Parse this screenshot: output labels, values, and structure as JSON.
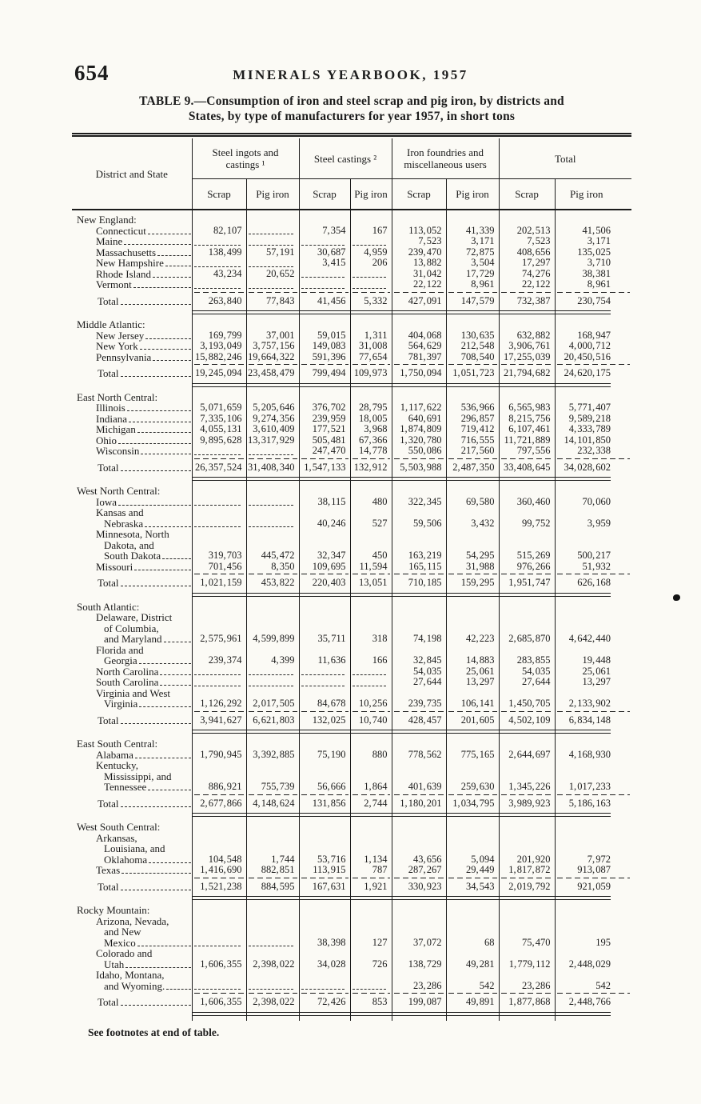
{
  "page": {
    "page_number": "654",
    "running_header": "MINERALS YEARBOOK, 1957",
    "title_line1": "TABLE 9.—Consumption of iron and steel scrap and pig iron, by districts and",
    "title_line2": "States, by type of manufacturers for year 1957, in short tons",
    "footnote": "See footnotes at end of table."
  },
  "table": {
    "stub_header": "District and State",
    "groups": [
      {
        "label": "Steel ingots and castings ¹"
      },
      {
        "label": "Steel castings ²"
      },
      {
        "label": "Iron foundries and miscellaneous users"
      },
      {
        "label": "Total"
      }
    ],
    "sub_headers": [
      "Scrap",
      "Pig iron",
      "Scrap",
      "Pig iron",
      "Scrap",
      "Pig iron",
      "Scrap",
      "Pig iron"
    ],
    "total_label": "Total",
    "sections": [
      {
        "name": "New England:",
        "rows": [
          {
            "lines": [
              [
                "Connecticut",
                1
              ]
            ],
            "values": [
              "82, 107",
              "",
              "7, 354",
              "167",
              "113, 052",
              "41, 339",
              "202, 513",
              "41, 506"
            ]
          },
          {
            "lines": [
              [
                "Maine",
                1
              ]
            ],
            "values": [
              "",
              "",
              "",
              "",
              "7, 523",
              "3, 171",
              "7, 523",
              "3, 171"
            ]
          },
          {
            "lines": [
              [
                "Massachusetts",
                1
              ]
            ],
            "values": [
              "138, 499",
              "57, 191",
              "30, 687",
              "4, 959",
              "239, 470",
              "72, 875",
              "408, 656",
              "135, 025"
            ]
          },
          {
            "lines": [
              [
                "New Hampshire",
                1
              ]
            ],
            "values": [
              "",
              "",
              "3, 415",
              "206",
              "13, 882",
              "3, 504",
              "17, 297",
              "3, 710"
            ]
          },
          {
            "lines": [
              [
                "Rhode Island",
                1
              ]
            ],
            "values": [
              "43, 234",
              "20, 652",
              "",
              "",
              "31, 042",
              "17, 729",
              "74, 276",
              "38, 381"
            ]
          },
          {
            "lines": [
              [
                "Vermont",
                1
              ]
            ],
            "values": [
              "",
              "",
              "",
              "",
              "22, 122",
              "8, 961",
              "22, 122",
              "8, 961"
            ]
          }
        ],
        "total": [
          "263, 840",
          "77, 843",
          "41, 456",
          "5, 332",
          "427, 091",
          "147, 579",
          "732, 387",
          "230, 754"
        ]
      },
      {
        "name": "Middle Atlantic:",
        "rows": [
          {
            "lines": [
              [
                "New Jersey",
                1
              ]
            ],
            "values": [
              "169, 799",
              "37, 001",
              "59, 015",
              "1, 311",
              "404, 068",
              "130, 635",
              "632, 882",
              "168, 947"
            ]
          },
          {
            "lines": [
              [
                "New York",
                1
              ]
            ],
            "values": [
              "3, 193, 049",
              "3, 757, 156",
              "149, 083",
              "31, 008",
              "564, 629",
              "212, 548",
              "3, 906, 761",
              "4, 000, 712"
            ]
          },
          {
            "lines": [
              [
                "Pennsylvania",
                1
              ]
            ],
            "values": [
              "15, 882, 246",
              "19, 664, 322",
              "591, 396",
              "77, 654",
              "781, 397",
              "708, 540",
              "17, 255, 039",
              "20, 450, 516"
            ]
          }
        ],
        "total": [
          "19, 245, 094",
          "23, 458, 479",
          "799, 494",
          "109, 973",
          "1, 750, 094",
          "1, 051, 723",
          "21, 794, 682",
          "24, 620, 175"
        ]
      },
      {
        "name": "East North Central:",
        "rows": [
          {
            "lines": [
              [
                "Illinois",
                1
              ]
            ],
            "values": [
              "5, 071, 659",
              "5, 205, 646",
              "376, 702",
              "28, 795",
              "1, 117, 622",
              "536, 966",
              "6, 565, 983",
              "5, 771, 407"
            ]
          },
          {
            "lines": [
              [
                "Indiana",
                1
              ]
            ],
            "values": [
              "7, 335, 106",
              "9, 274, 356",
              "239, 959",
              "18, 005",
              "640, 691",
              "296, 857",
              "8, 215, 756",
              "9, 589, 218"
            ]
          },
          {
            "lines": [
              [
                "Michigan",
                1
              ]
            ],
            "values": [
              "4, 055, 131",
              "3, 610, 409",
              "177, 521",
              "3, 968",
              "1, 874, 809",
              "719, 412",
              "6, 107, 461",
              "4, 333, 789"
            ]
          },
          {
            "lines": [
              [
                "Ohio",
                1
              ]
            ],
            "values": [
              "9, 895, 628",
              "13, 317, 929",
              "505, 481",
              "67, 366",
              "1, 320, 780",
              "716, 555",
              "11, 721, 889",
              "14, 101, 850"
            ]
          },
          {
            "lines": [
              [
                "Wisconsin",
                1
              ]
            ],
            "values": [
              "",
              "",
              "247, 470",
              "14, 778",
              "550, 086",
              "217, 560",
              "797, 556",
              "232, 338"
            ]
          }
        ],
        "total": [
          "26, 357, 524",
          "31, 408, 340",
          "1, 547, 133",
          "132, 912",
          "5, 503, 988",
          "2, 487, 350",
          "33, 408, 645",
          "34, 028, 602"
        ]
      },
      {
        "name": "West North Central:",
        "rows": [
          {
            "lines": [
              [
                "Iowa",
                1
              ]
            ],
            "values": [
              "",
              "",
              "38, 115",
              "480",
              "322, 345",
              "69, 580",
              "360, 460",
              "70, 060"
            ]
          },
          {
            "lines": [
              [
                "Kansas and",
                1
              ],
              [
                "Nebraska",
                2
              ]
            ],
            "values": [
              "",
              "",
              "40, 246",
              "527",
              "59, 506",
              "3, 432",
              "99, 752",
              "3, 959"
            ]
          },
          {
            "lines": [
              [
                "Minnesota, North",
                1
              ],
              [
                "Dakota, and",
                2
              ],
              [
                "South Dakota",
                2
              ]
            ],
            "values": [
              "319, 703",
              "445, 472",
              "32, 347",
              "450",
              "163, 219",
              "54, 295",
              "515, 269",
              "500, 217"
            ]
          },
          {
            "lines": [
              [
                "Missouri",
                1
              ]
            ],
            "values": [
              "701, 456",
              "8, 350",
              "109, 695",
              "11, 594",
              "165, 115",
              "31, 988",
              "976, 266",
              "51, 932"
            ]
          }
        ],
        "total": [
          "1, 021, 159",
          "453, 822",
          "220, 403",
          "13, 051",
          "710, 185",
          "159, 295",
          "1, 951, 747",
          "626, 168"
        ]
      },
      {
        "name": "South Atlantic:",
        "rows": [
          {
            "lines": [
              [
                "Delaware, District",
                1
              ],
              [
                "of Columbia,",
                2
              ],
              [
                "and Maryland",
                2
              ]
            ],
            "values": [
              "2, 575, 961",
              "4, 599, 899",
              "35, 711",
              "318",
              "74, 198",
              "42, 223",
              "2, 685, 870",
              "4, 642, 440"
            ]
          },
          {
            "lines": [
              [
                "Florida and",
                1
              ],
              [
                "Georgia",
                2
              ]
            ],
            "values": [
              "239, 374",
              "4, 399",
              "11, 636",
              "166",
              "32, 845",
              "14, 883",
              "283, 855",
              "19, 448"
            ]
          },
          {
            "lines": [
              [
                "North Carolina",
                1
              ]
            ],
            "values": [
              "",
              "",
              "",
              "",
              "54, 035",
              "25, 061",
              "54, 035",
              "25, 061"
            ]
          },
          {
            "lines": [
              [
                "South Carolina",
                1
              ]
            ],
            "values": [
              "",
              "",
              "",
              "",
              "27, 644",
              "13, 297",
              "27, 644",
              "13, 297"
            ]
          },
          {
            "lines": [
              [
                "Virginia and West",
                1
              ],
              [
                "Virginia",
                2
              ]
            ],
            "values": [
              "1, 126, 292",
              "2, 017, 505",
              "84, 678",
              "10, 256",
              "239, 735",
              "106, 141",
              "1, 450, 705",
              "2, 133, 902"
            ]
          }
        ],
        "total": [
          "3, 941, 627",
          "6, 621, 803",
          "132, 025",
          "10, 740",
          "428, 457",
          "201, 605",
          "4, 502, 109",
          "6, 834, 148"
        ]
      },
      {
        "name": "East South Central:",
        "rows": [
          {
            "lines": [
              [
                "Alabama",
                1
              ]
            ],
            "values": [
              "1, 790, 945",
              "3, 392, 885",
              "75, 190",
              "880",
              "778, 562",
              "775, 165",
              "2, 644, 697",
              "4, 168, 930"
            ]
          },
          {
            "lines": [
              [
                "Kentucky,",
                1
              ],
              [
                "Mississippi, and",
                2
              ],
              [
                "Tennessee",
                2
              ]
            ],
            "values": [
              "886, 921",
              "755, 739",
              "56, 666",
              "1, 864",
              "401, 639",
              "259, 630",
              "1, 345, 226",
              "1, 017, 233"
            ]
          }
        ],
        "total": [
          "2, 677, 866",
          "4, 148, 624",
          "131, 856",
          "2, 744",
          "1, 180, 201",
          "1, 034, 795",
          "3, 989, 923",
          "5, 186, 163"
        ]
      },
      {
        "name": "West South Central:",
        "rows": [
          {
            "lines": [
              [
                "Arkansas,",
                1
              ],
              [
                "Louisiana, and",
                2
              ],
              [
                "Oklahoma",
                2
              ]
            ],
            "values": [
              "104, 548",
              "1, 744",
              "53, 716",
              "1, 134",
              "43, 656",
              "5, 094",
              "201, 920",
              "7, 972"
            ]
          },
          {
            "lines": [
              [
                "Texas",
                1
              ]
            ],
            "values": [
              "1, 416, 690",
              "882, 851",
              "113, 915",
              "787",
              "287, 267",
              "29, 449",
              "1, 817, 872",
              "913, 087"
            ]
          }
        ],
        "total": [
          "1, 521, 238",
          "884, 595",
          "167, 631",
          "1, 921",
          "330, 923",
          "34, 543",
          "2, 019, 792",
          "921, 059"
        ]
      },
      {
        "name": "Rocky Mountain:",
        "rows": [
          {
            "lines": [
              [
                "Arizona, Nevada,",
                1
              ],
              [
                "and New",
                2
              ],
              [
                "Mexico",
                2
              ]
            ],
            "values": [
              "",
              "",
              "38, 398",
              "127",
              "37, 072",
              "68",
              "75, 470",
              "195"
            ]
          },
          {
            "lines": [
              [
                "Colorado and",
                1
              ],
              [
                "Utah",
                2
              ]
            ],
            "values": [
              "1, 606, 355",
              "2, 398, 022",
              "34, 028",
              "726",
              "138, 729",
              "49, 281",
              "1, 779, 112",
              "2, 448, 029"
            ]
          },
          {
            "lines": [
              [
                "Idaho, Montana,",
                1
              ],
              [
                "and Wyoming.",
                2
              ]
            ],
            "values": [
              "",
              "",
              "",
              "",
              "23, 286",
              "542",
              "23, 286",
              "542"
            ]
          }
        ],
        "total": [
          "1, 606, 355",
          "2, 398, 022",
          "72, 426",
          "853",
          "199, 087",
          "49, 891",
          "1, 877, 868",
          "2, 448, 766"
        ]
      }
    ]
  }
}
